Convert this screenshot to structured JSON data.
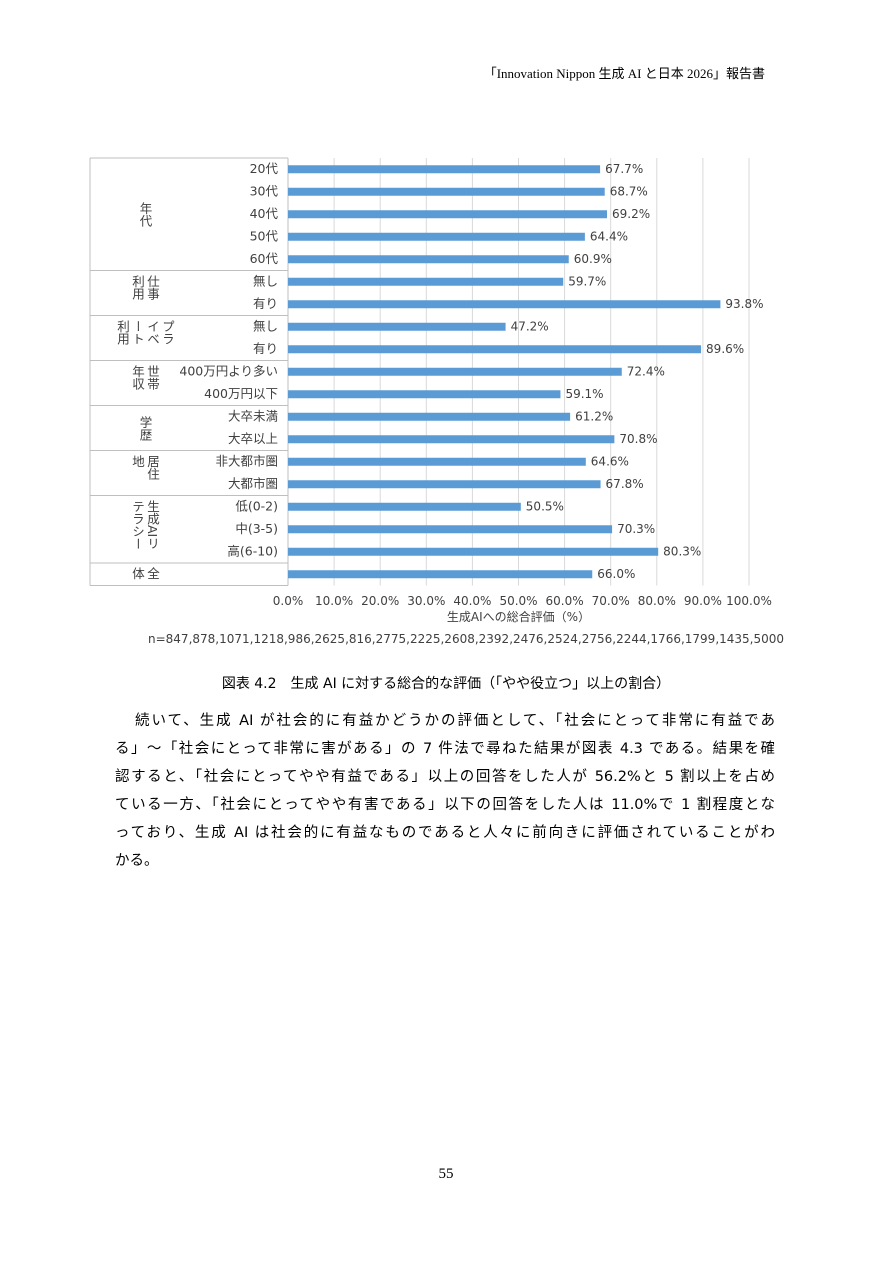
{
  "header": "「Innovation Nippon 生成 AI と日本 2026」報告書",
  "chart_data": {
    "type": "bar",
    "orientation": "horizontal",
    "color": "#5b9bd5",
    "groups": [
      {
        "name": "年代",
        "categories": [
          "20代",
          "30代",
          "40代",
          "50代",
          "60代"
        ],
        "values": [
          67.7,
          68.7,
          69.2,
          64.4,
          60.9
        ],
        "value_labels": [
          "67.7%",
          "68.7%",
          "69.2%",
          "64.4%",
          "60.9%"
        ]
      },
      {
        "name": "仕事利用",
        "categories": [
          "無し",
          "有り"
        ],
        "values": [
          59.7,
          93.8
        ],
        "value_labels": [
          "59.7%",
          "93.8%"
        ]
      },
      {
        "name": "プライベート利用",
        "categories": [
          "無し",
          "有り"
        ],
        "values": [
          47.2,
          89.6
        ],
        "value_labels": [
          "47.2%",
          "89.6%"
        ]
      },
      {
        "name": "世帯年収",
        "categories": [
          "400万円より多い",
          "400万円以下"
        ],
        "values": [
          72.4,
          59.1
        ],
        "value_labels": [
          "72.4%",
          "59.1%"
        ]
      },
      {
        "name": "学歴",
        "categories": [
          "大卒未満",
          "大卒以上"
        ],
        "values": [
          61.2,
          70.8
        ],
        "value_labels": [
          "61.2%",
          "70.8%"
        ]
      },
      {
        "name": "居住地",
        "categories": [
          "非大都市圏",
          "大都市圏"
        ],
        "values": [
          64.6,
          67.8
        ],
        "value_labels": [
          "64.6%",
          "67.8%"
        ]
      },
      {
        "name": "生成AIリテラシー",
        "categories": [
          "低(0-2)",
          "中(3-5)",
          "高(6-10)"
        ],
        "values": [
          50.5,
          70.3,
          80.3
        ],
        "value_labels": [
          "50.5%",
          "70.3%",
          "80.3%"
        ]
      },
      {
        "name": "全体",
        "categories": [
          null
        ],
        "values": [
          66.0
        ],
        "value_labels": [
          "66.0%"
        ]
      }
    ],
    "xlim": [
      0,
      100
    ],
    "xticks": [
      {
        "value": 0,
        "label": "0.0%"
      },
      {
        "value": 10,
        "label": "10.0%"
      },
      {
        "value": 20,
        "label": "20.0%"
      },
      {
        "value": 30,
        "label": "30.0%"
      },
      {
        "value": 40,
        "label": "40.0%"
      },
      {
        "value": 50,
        "label": "50.0%"
      },
      {
        "value": 60,
        "label": "60.0%"
      },
      {
        "value": 70,
        "label": "70.0%"
      },
      {
        "value": 80,
        "label": "80.0%"
      },
      {
        "value": 90,
        "label": "90.0%"
      },
      {
        "value": 100,
        "label": "100.0%"
      }
    ],
    "grid": true,
    "xlabel": "生成AIへの総合評価（%）",
    "note": "n=847,878,1071,1218,986,2625,816,2775,2225,2608,2392,2476,2524,2756,2244,1766,1799,1435,5000"
  },
  "caption": "図表 4.2　生成 AI に対する総合的な評価（「やや役立つ」以上の割合）",
  "paragraph": [
    "続いて、生成 AI が社会的に有益かどうかの評価として、「社会にとって非常に有益であ",
    "る」～「社会にとって非常に害がある」の 7 件法で尋ねた結果が図表 4.3 である。結果を確",
    "認すると、「社会にとってやや有益である」以上の回答をした人が 56.2%と 5 割以上を占め",
    "ている一方、「社会にとってやや有害である」以下の回答をした人は 11.0%で 1 割程度とな",
    "っており、生成 AI は社会的に有益なものであると人々に前向きに評価されていることがわ",
    "かる。"
  ],
  "page_number": "55"
}
